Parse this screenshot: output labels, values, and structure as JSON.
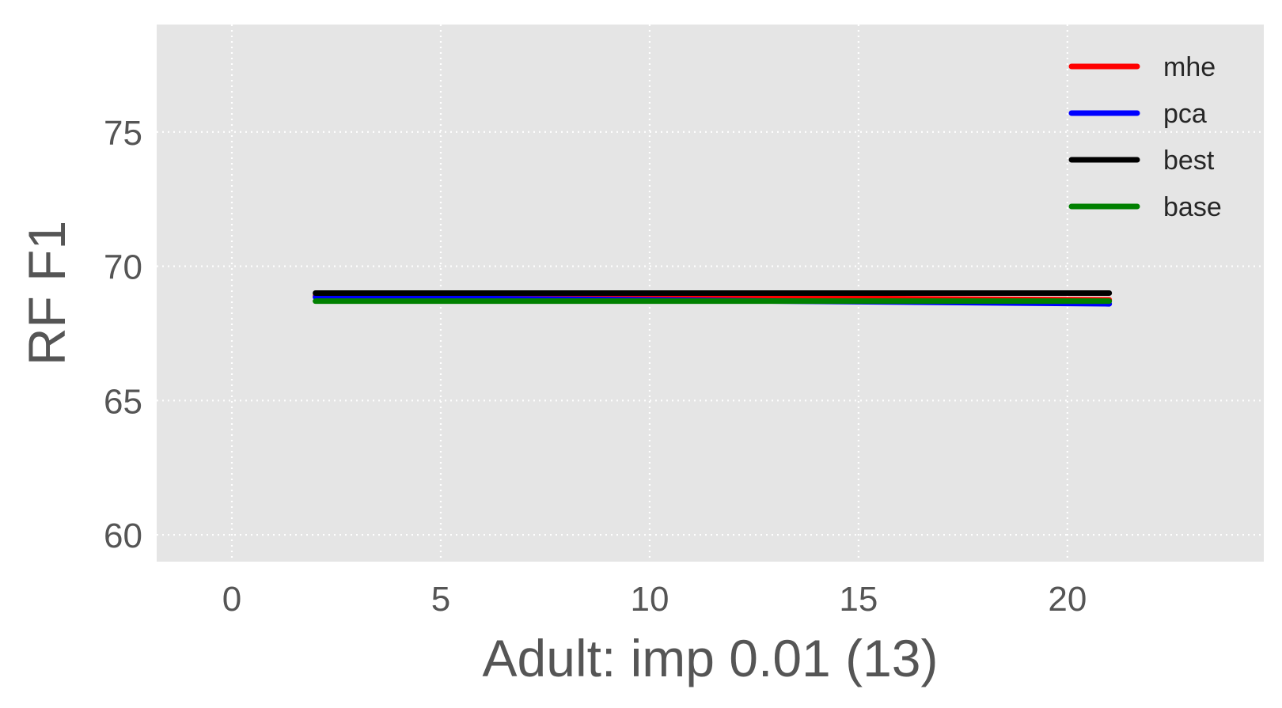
{
  "chart_data": {
    "type": "line",
    "xlabel": "Adult: imp 0.01 (13)",
    "ylabel": "RF F1",
    "xlim": [
      -1.8,
      24.7
    ],
    "ylim": [
      59,
      79
    ],
    "xticks": [
      0,
      5,
      10,
      15,
      20
    ],
    "yticks": [
      60,
      65,
      70,
      75
    ],
    "grid": true,
    "grid_style": "dotted",
    "background": "#e5e5e5",
    "legend_position": "top-right",
    "x": [
      2,
      21
    ],
    "series": [
      {
        "name": "mhe",
        "color": "#ff0000",
        "values": [
          68.9,
          68.75
        ]
      },
      {
        "name": "pca",
        "color": "#0000ff",
        "values": [
          68.85,
          68.6
        ]
      },
      {
        "name": "best",
        "color": "#000000",
        "values": [
          69.0,
          69.0
        ]
      },
      {
        "name": "base",
        "color": "#008000",
        "values": [
          68.7,
          68.7
        ]
      }
    ]
  }
}
